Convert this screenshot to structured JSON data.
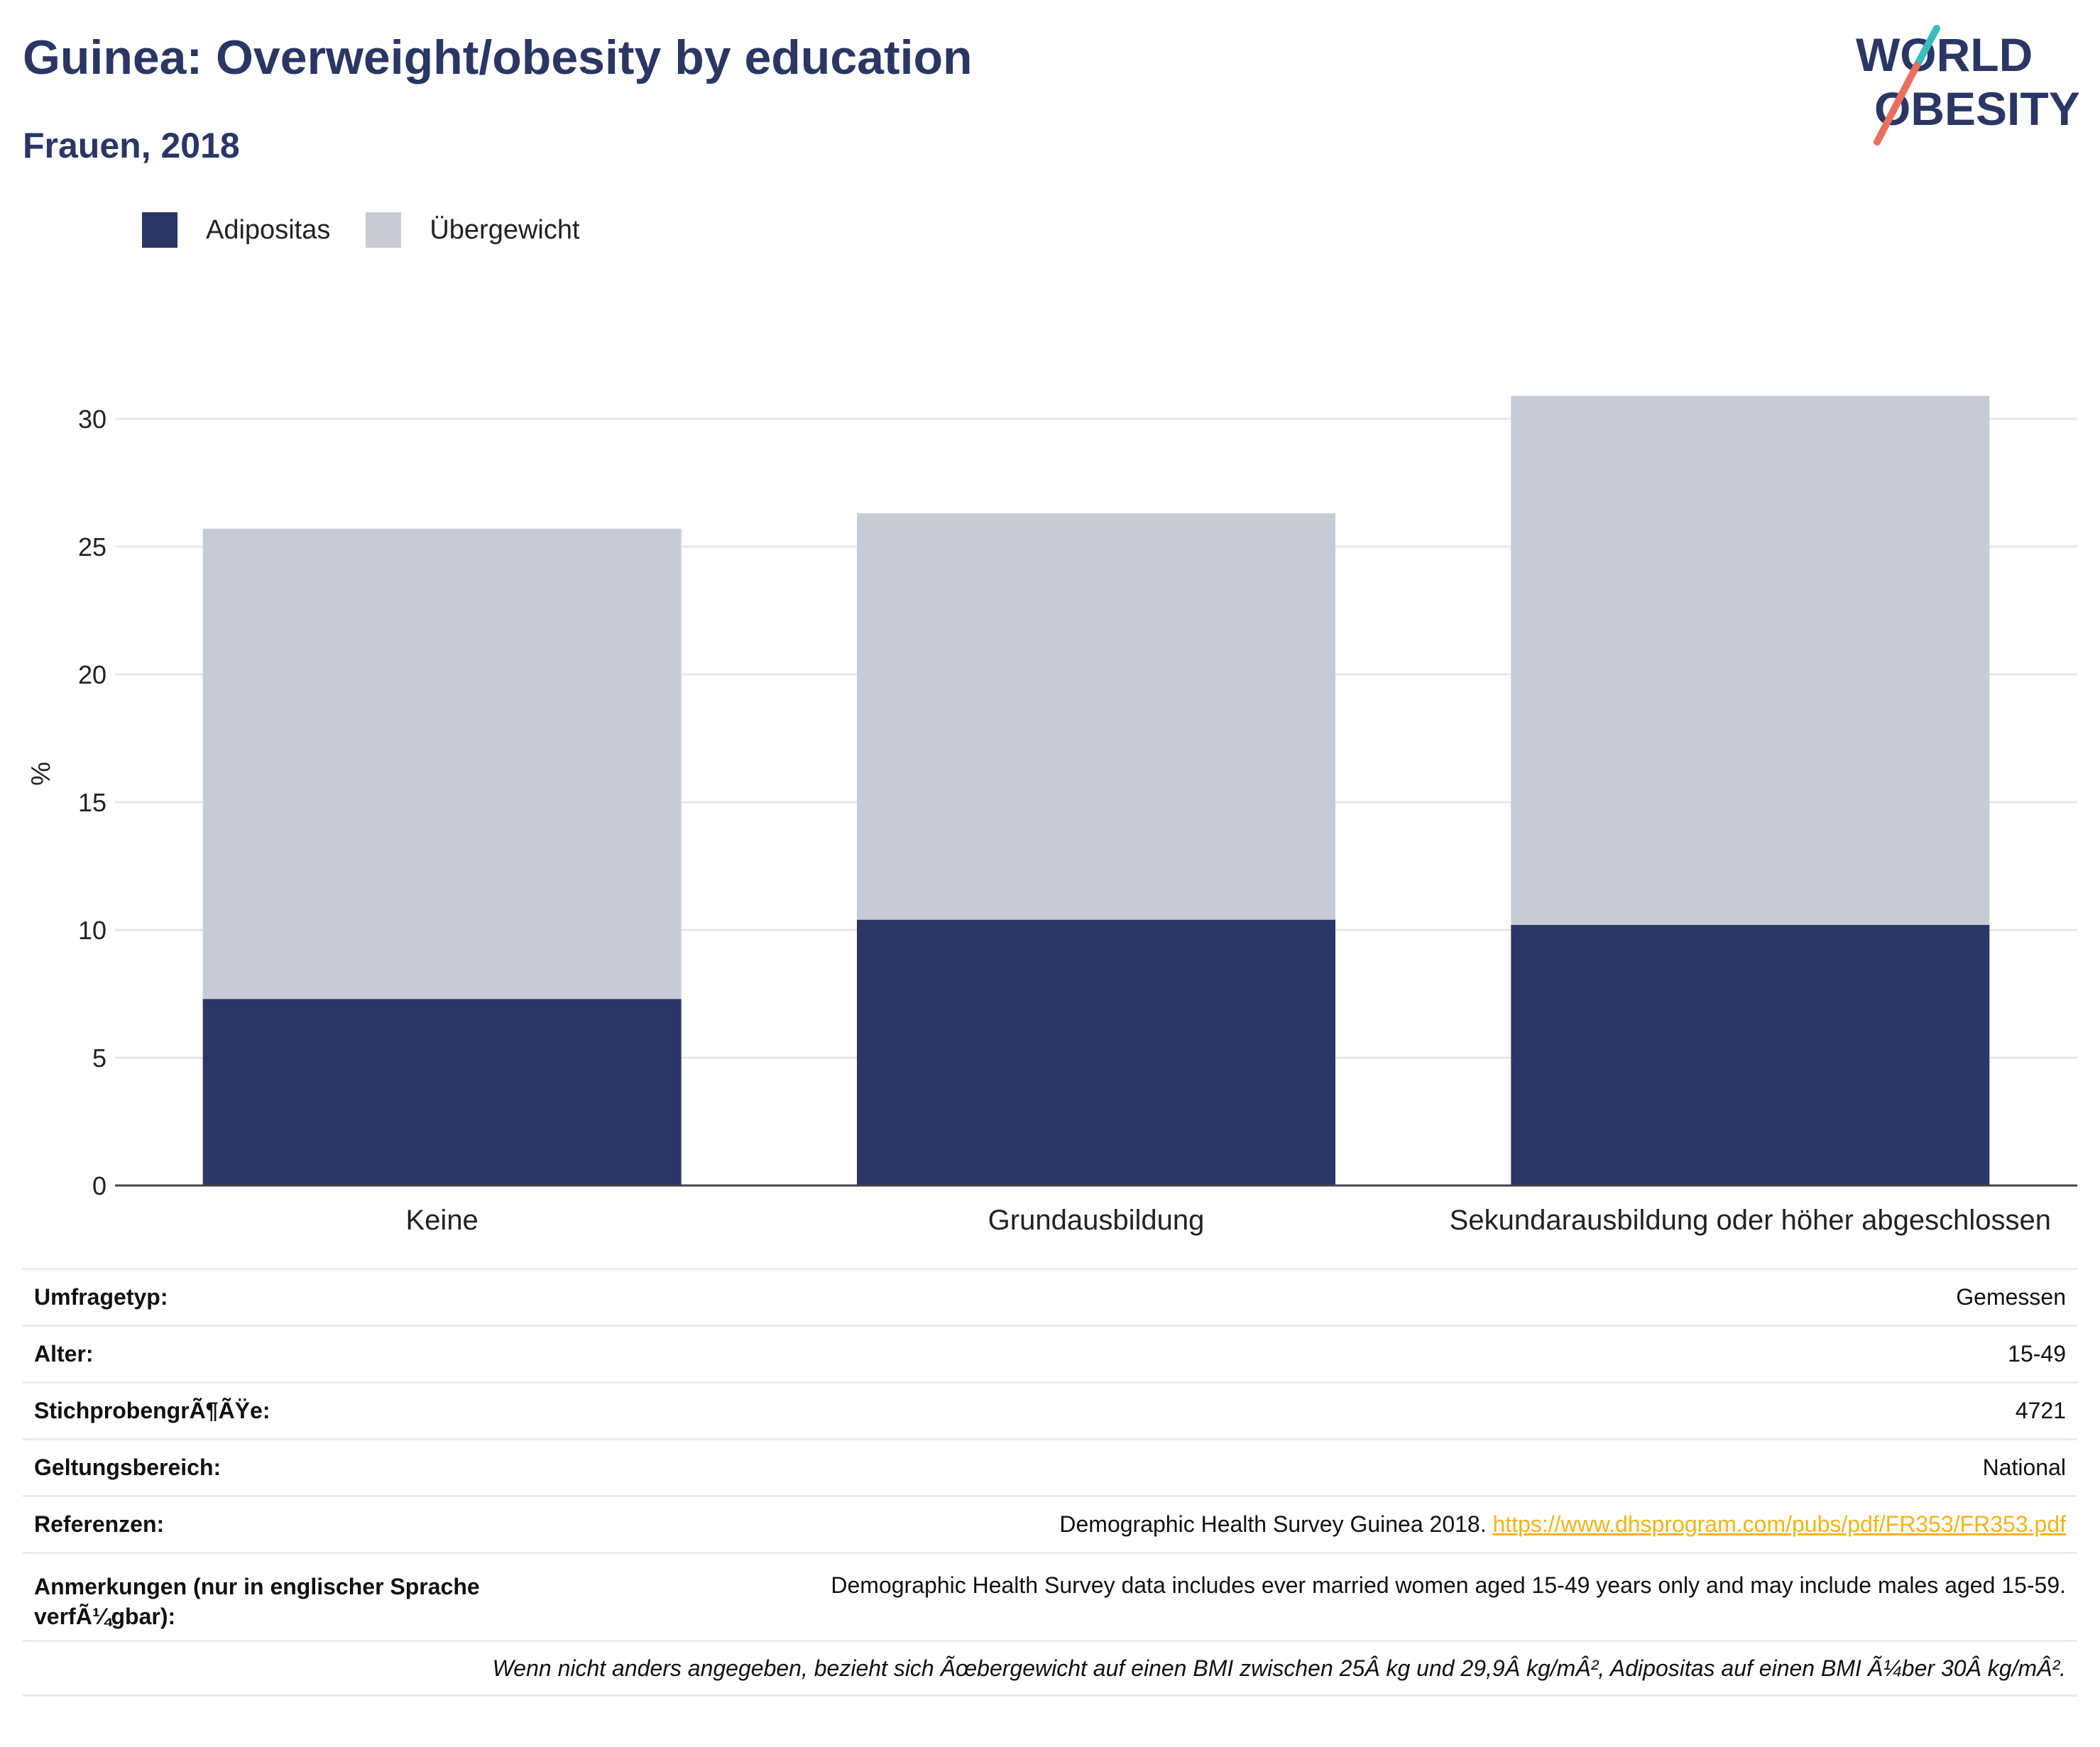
{
  "header": {
    "title": "Guinea: Overweight/obesity by education",
    "subtitle": "Frauen, 2018"
  },
  "logo": {
    "line1": "WORLD",
    "line2": "OBESITY",
    "accent_teal": "#3bbcbe",
    "accent_red": "#e8705f",
    "text_color": "#2a3664"
  },
  "colors": {
    "obesity": "#2a3664",
    "overweight": "#c8cbd6"
  },
  "chart_data": {
    "type": "bar",
    "stacked": true,
    "categories": [
      "Keine",
      "Grundausbildung",
      "Sekundarausbildung oder höher abgeschlossen"
    ],
    "series": [
      {
        "name": "Adipositas",
        "values": [
          7.3,
          10.4,
          10.2
        ],
        "color": "#2a3664"
      },
      {
        "name": "Übergewicht",
        "values": [
          18.4,
          15.9,
          20.7
        ],
        "color": "#c8cbd6"
      }
    ],
    "title": "Guinea: Overweight/obesity by education",
    "subtitle": "Frauen, 2018",
    "xlabel": "",
    "ylabel": "%",
    "ylim": [
      0,
      31
    ],
    "yticks": [
      0,
      5,
      10,
      15,
      20,
      25,
      30
    ],
    "grid": true,
    "legend": "top-left"
  },
  "meta": {
    "rows": [
      {
        "key": "Umfragetyp:",
        "value": "Gemessen"
      },
      {
        "key": "Alter:",
        "value": "15-49"
      },
      {
        "key": "StichprobengrÃ¶ÃŸe:",
        "value": "4721"
      },
      {
        "key": "Geltungsbereich:",
        "value": "National"
      }
    ],
    "references_key": "Referenzen:",
    "references_text": "Demographic Health Survey Guinea 2018.",
    "references_link": "https://www.dhsprogram.com/pubs/pdf/FR353/FR353.pdf",
    "notes_key": "Anmerkungen (nur in englischer Sprache verfÃ¼gbar):",
    "notes_value": "Demographic Health Survey data includes ever married women aged 15-49 years only and may include males aged 15-59.",
    "footnote": "Wenn nicht anders angegeben, bezieht sich Ãœbergewicht auf einen BMI zwischen 25Â kg und 29,9Â kg/mÂ², Adipositas auf einen BMI Ã¼ber 30Â kg/mÂ²."
  }
}
